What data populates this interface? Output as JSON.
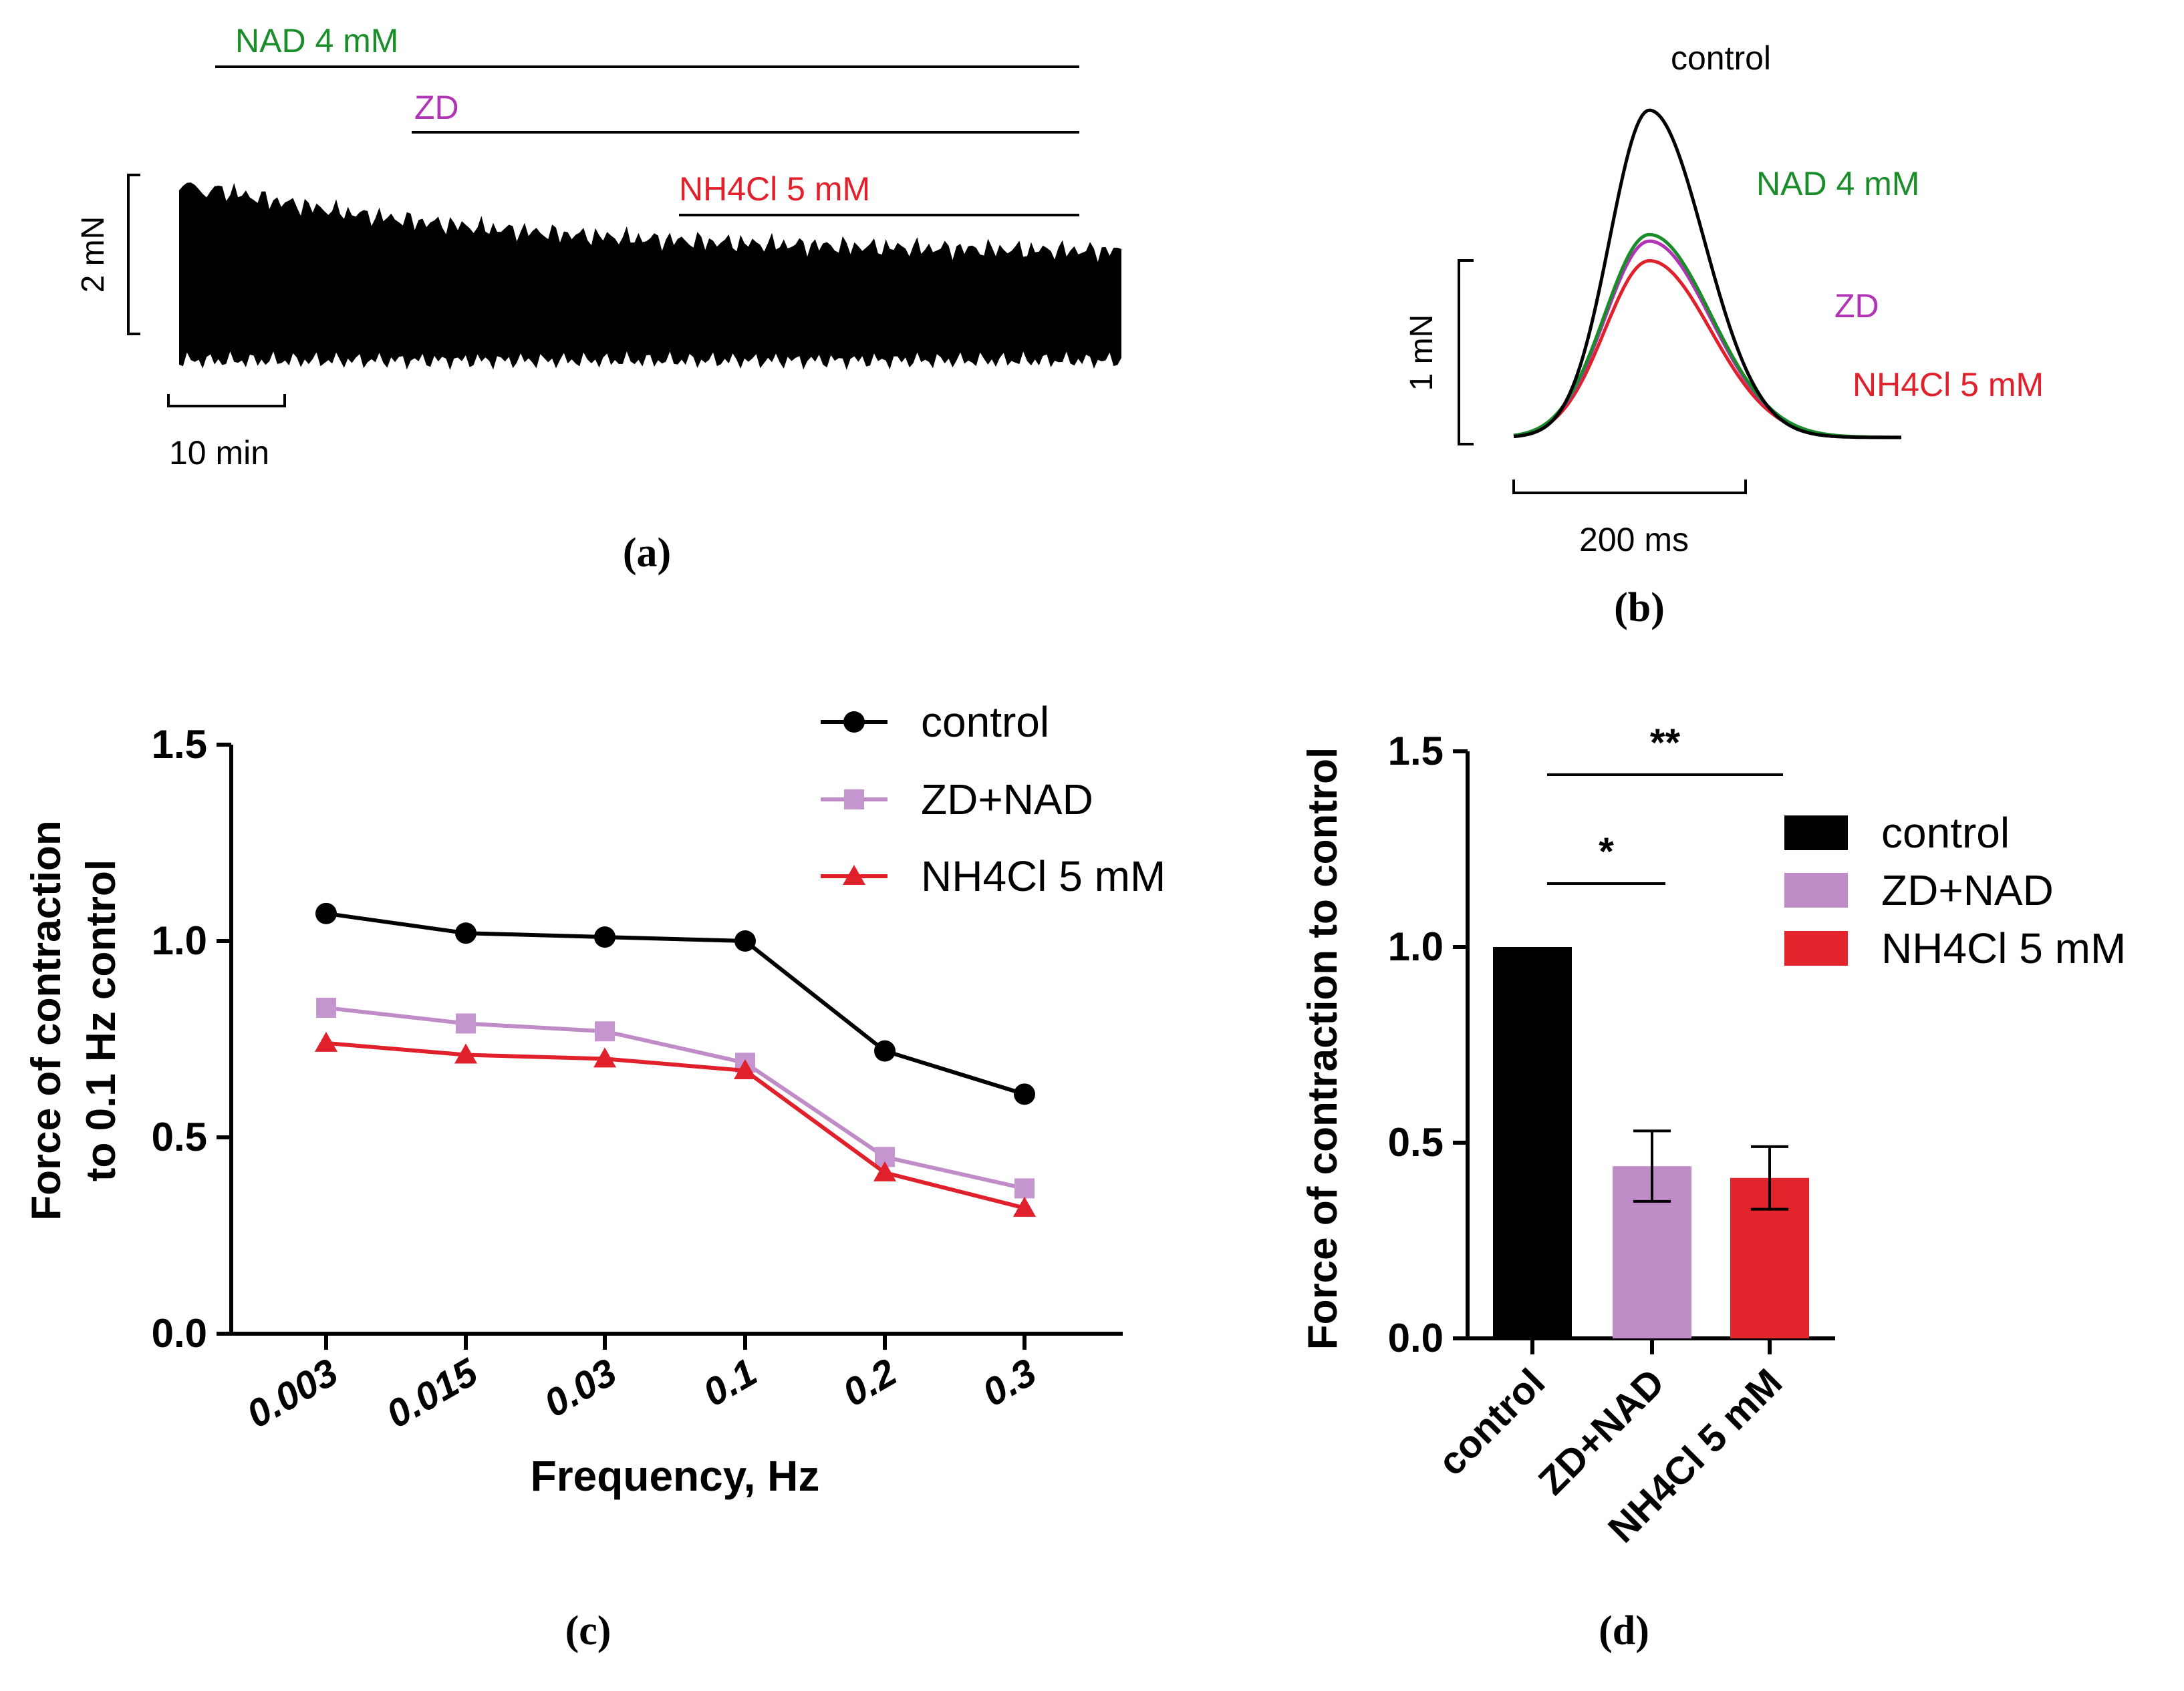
{
  "colors": {
    "black": "#000000",
    "green": "#1a8c2a",
    "purple_trace": "#7a1f86",
    "purple_label": "#b035b4",
    "lilac": "#c08cc8",
    "lilac_marker": "#c495cf",
    "red": "#e0202b",
    "bar_red": "#e2242d"
  },
  "panel_a": {
    "label": "(a)",
    "bars": [
      {
        "label": "NAD 4 mM",
        "color": "green"
      },
      {
        "label": "ZD",
        "color": "purple_label"
      },
      {
        "label": "NH4Cl 5 mM",
        "color": "red"
      }
    ],
    "y_scale": "2 mN",
    "x_scale": "10 min"
  },
  "panel_b": {
    "label": "(b)",
    "traces": [
      {
        "name": "control",
        "color": "black",
        "relative_amplitude": 1.0
      },
      {
        "name": "NAD 4 mM",
        "color": "green",
        "relative_amplitude": 0.62
      },
      {
        "name": "ZD",
        "color": "purple_label",
        "relative_amplitude": 0.6
      },
      {
        "name": "NH4Cl 5 mM",
        "color": "red",
        "relative_amplitude": 0.54
      }
    ],
    "y_scale": "1 mN",
    "x_scale": "200 ms"
  },
  "panel_c": {
    "label": "(c)",
    "xlabel": "Frequency, Hz",
    "ylabel_line1": "Force of contraction",
    "ylabel_line2": "to 0.1 Hz control",
    "y_ticks": [
      "0.0",
      "0.5",
      "1.0",
      "1.5"
    ]
  },
  "panel_d": {
    "label": "(d)",
    "ylabel": "Force of contraction to control",
    "y_ticks": [
      "0.0",
      "0.5",
      "1.0",
      "1.5"
    ],
    "significance": [
      {
        "text": "*",
        "from": 0,
        "to": 1
      },
      {
        "text": "**",
        "from": 0,
        "to": 2
      }
    ]
  },
  "chart_data": [
    {
      "type": "line",
      "title": "(c)",
      "xlabel": "Frequency, Hz",
      "ylabel": "Force of contraction to 0.1 Hz control",
      "categories": [
        "0.003",
        "0.015",
        "0.03",
        "0.1",
        "0.2",
        "0.3"
      ],
      "ylim": [
        0,
        1.5
      ],
      "legend_position": "top-right",
      "series": [
        {
          "name": "control",
          "marker": "circle",
          "color": "#000000",
          "values": [
            1.07,
            1.02,
            1.01,
            1.0,
            0.72,
            0.61
          ]
        },
        {
          "name": "ZD+NAD",
          "marker": "square",
          "color": "#c08cc8",
          "values": [
            0.83,
            0.79,
            0.77,
            0.69,
            0.45,
            0.37
          ]
        },
        {
          "name": "NH4Cl 5 mM",
          "marker": "triangle",
          "color": "#e0202b",
          "values": [
            0.74,
            0.71,
            0.7,
            0.67,
            0.41,
            0.32
          ]
        }
      ]
    },
    {
      "type": "bar",
      "title": "(d)",
      "xlabel": "",
      "ylabel": "Force of contraction to control",
      "categories": [
        "control",
        "ZD+NAD",
        "NH4Cl 5 mM"
      ],
      "values": [
        1.0,
        0.44,
        0.41
      ],
      "errors": [
        0,
        0.09,
        0.08
      ],
      "colors": [
        "#000000",
        "#c08cc8",
        "#e2242d"
      ],
      "ylim": [
        0,
        1.5
      ],
      "legend_position": "right"
    }
  ]
}
